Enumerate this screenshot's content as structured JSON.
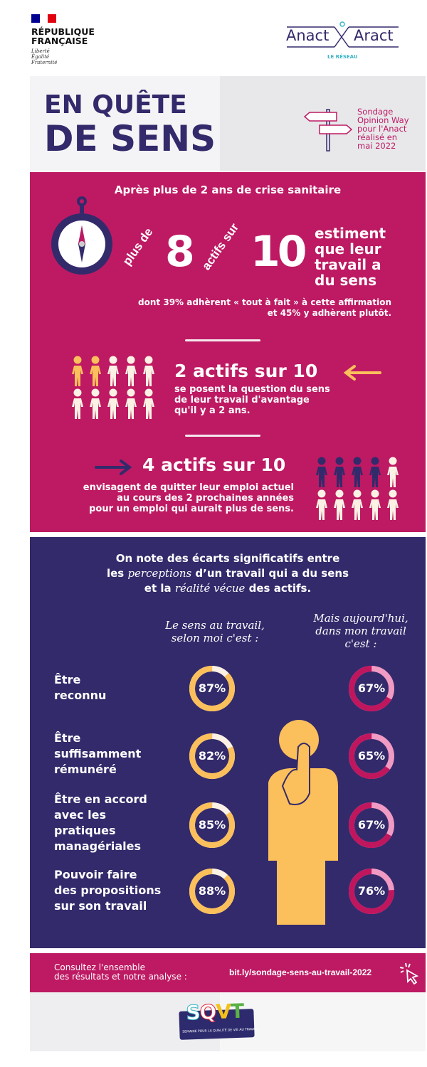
{
  "header": {
    "republique": {
      "line1": "RÉPUBLIQUE",
      "line2": "FRANÇAISE",
      "motto": [
        "Liberté",
        "Égalité",
        "Fraternité"
      ]
    },
    "anact": {
      "left": "Anact",
      "right": "Aract",
      "sub": "LE RÉSEAU"
    }
  },
  "title": {
    "line1": "EN QUÊTE",
    "line2": "DE SENS",
    "source": [
      "Sondage",
      "Opinion Way",
      "pour l'Anact",
      "réalisé en",
      "mai 2022"
    ]
  },
  "section1": {
    "heading": "Après plus de 2 ans de crise sanitaire",
    "plus_de": "plus de",
    "eight": "8",
    "actifs_sur": "actifs sur",
    "ten": "10",
    "estiment": [
      "estiment",
      "que leur",
      "travail a",
      "du sens"
    ],
    "detail": [
      "dont 39% adhèrent « tout à fait » à cette affirmation",
      "et 45% y adhèrent plutôt."
    ]
  },
  "stat2": {
    "title": "2 actifs sur 10",
    "text": [
      "se posent la question du sens",
      "de leur travail d'avantage",
      "qu'il y a 2 ans."
    ],
    "highlighted": 2,
    "total": 10,
    "color": "#fbbf5b"
  },
  "stat4": {
    "title": "4 actifs sur 10",
    "text": [
      "envisagent de quitter leur emploi actuel",
      "au cours des 2 prochaines années",
      "pour un emploi qui aurait plus de sens."
    ],
    "highlighted": 4,
    "total": 10,
    "color": "#332a6b"
  },
  "section2": {
    "intro": {
      "line1": "On note des écarts significatifs entre",
      "line2_a": "les ",
      "line2_script": "perceptions",
      "line2_b": " d’un travail qui a du sens",
      "line3_a": "et la ",
      "line3_script": "réalité vécue",
      "line3_b": " des actifs."
    },
    "col_left": [
      "Le sens au travail,",
      "selon moi c'est :"
    ],
    "col_right": [
      "Mais aujourd'hui,",
      "dans mon travail",
      "c'est :"
    ],
    "colors": {
      "perception": "#fbbf5b",
      "perception_track": "#fbf1e4",
      "reality": "#c0165e",
      "reality_track": "#f19ac4"
    }
  },
  "chart_data": {
    "type": "donut",
    "categories": [
      "Être reconnu",
      "Être suffisamment rémunéré",
      "Être en accord avec les pratiques managériales",
      "Pouvoir faire des propositions sur son travail"
    ],
    "labels": [
      [
        "Être",
        "reconnu"
      ],
      [
        "Être",
        "suffisamment",
        "rémunéré"
      ],
      [
        "Être en accord",
        "avec les",
        "pratiques",
        "managériales"
      ],
      [
        "Pouvoir faire",
        "des propositions",
        "sur son travail"
      ]
    ],
    "series": [
      {
        "values": [
          87,
          82,
          85,
          88
        ],
        "display": [
          "87%",
          "82%",
          "85%",
          "88%"
        ]
      },
      {
        "values": [
          67,
          65,
          67,
          76
        ],
        "display": [
          "67%",
          "65%",
          "67%",
          "76%"
        ]
      }
    ]
  },
  "footer": {
    "text": [
      "Consultez l'ensemble",
      "des résultats et notre analyse :"
    ],
    "link": "bit.ly/sondage-sens-au-travail-2022",
    "logo": "SQVT",
    "logo_sub": "SEMAINE POUR LA QUALITÉ DE VIE AU TRAVAIL"
  }
}
